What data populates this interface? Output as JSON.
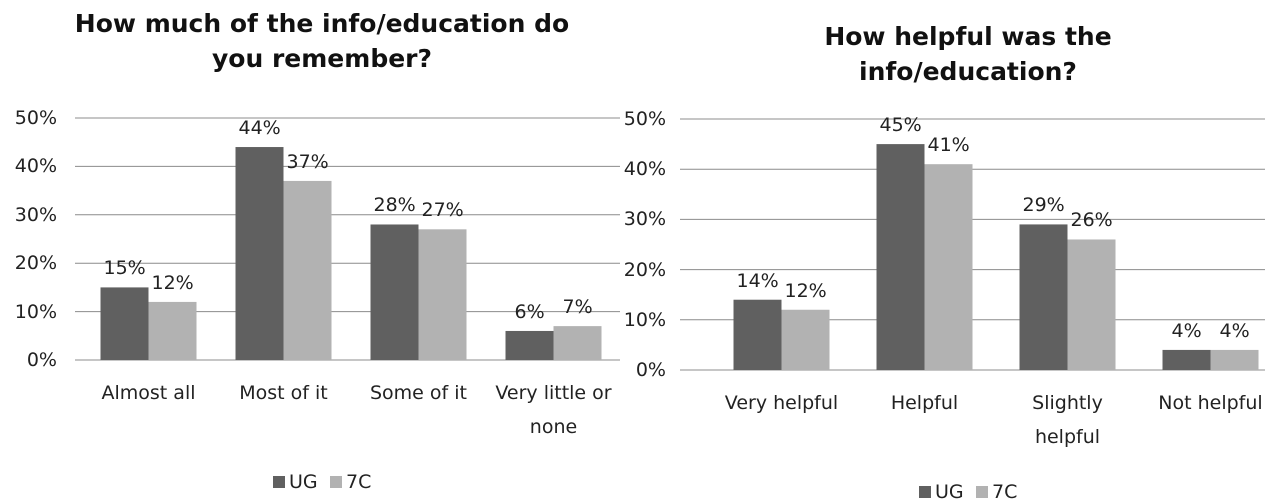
{
  "chart_data": [
    {
      "type": "bar",
      "title": "How much of the info/education do you remember?",
      "categories": [
        "Almost all",
        "Most of it",
        "Some of it",
        "Very little or none"
      ],
      "series": [
        {
          "name": "UG",
          "color": "#606060",
          "values": [
            15,
            44,
            28,
            6
          ],
          "value_labels": [
            "15%",
            "44%",
            "28%",
            "6%"
          ]
        },
        {
          "name": "7C",
          "color": "#b2b2b2",
          "values": [
            12,
            37,
            27,
            7
          ],
          "value_labels": [
            "12%",
            "37%",
            "27%",
            "7%"
          ]
        }
      ],
      "ylim": [
        0,
        50
      ],
      "yticks": [
        {
          "value": 0,
          "label": "0%"
        },
        {
          "value": 10,
          "label": "10%"
        },
        {
          "value": 20,
          "label": "20%"
        },
        {
          "value": 30,
          "label": "30%"
        },
        {
          "value": 40,
          "label": "40%"
        },
        {
          "value": 50,
          "label": "50%"
        }
      ],
      "grid": true,
      "legend": "bottom"
    },
    {
      "type": "bar",
      "title": "How helpful was the info/education?",
      "categories": [
        "Very helpful",
        "Helpful",
        "Slightly helpful",
        "Not helpful"
      ],
      "series": [
        {
          "name": "UG",
          "color": "#606060",
          "values": [
            14,
            45,
            29,
            4
          ],
          "value_labels": [
            "14%",
            "45%",
            "29%",
            "4%"
          ]
        },
        {
          "name": "7C",
          "color": "#b2b2b2",
          "values": [
            12,
            41,
            26,
            4
          ],
          "value_labels": [
            "12%",
            "41%",
            "26%",
            "4%"
          ]
        }
      ],
      "ylim": [
        0,
        50
      ],
      "yticks": [
        {
          "value": 0,
          "label": "0%"
        },
        {
          "value": 10,
          "label": "10%"
        },
        {
          "value": 20,
          "label": "20%"
        },
        {
          "value": 30,
          "label": "30%"
        },
        {
          "value": 40,
          "label": "40%"
        },
        {
          "value": 50,
          "label": "50%"
        }
      ],
      "grid": true,
      "legend": "bottom"
    }
  ]
}
